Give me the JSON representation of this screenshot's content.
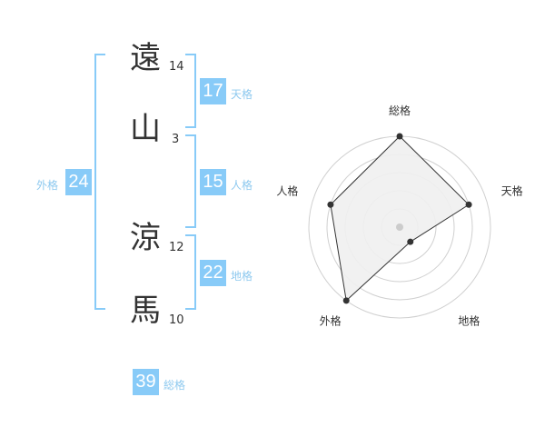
{
  "name": [
    {
      "char": "遠",
      "strokes": "14"
    },
    {
      "char": "山",
      "strokes": "3"
    },
    {
      "char": "涼",
      "strokes": "12"
    },
    {
      "char": "馬",
      "strokes": "10"
    }
  ],
  "kakusu": {
    "tenkaku": {
      "value": "17",
      "label": "天格"
    },
    "jinkaku": {
      "value": "15",
      "label": "人格"
    },
    "chikaku": {
      "value": "22",
      "label": "地格"
    },
    "gaikaku": {
      "value": "24",
      "label": "外格"
    },
    "soukaku": {
      "value": "39",
      "label": "総格"
    }
  },
  "colors": {
    "accent": "#88cbf8",
    "label": "#8ec9ef",
    "fill": "#f0f0f0"
  },
  "chart_data": {
    "type": "radar",
    "categories": [
      "総格",
      "天格",
      "地格",
      "外格",
      "人格"
    ],
    "values": [
      5,
      4,
      1,
      5,
      4
    ],
    "range": [
      0,
      5
    ],
    "rings": 5
  }
}
